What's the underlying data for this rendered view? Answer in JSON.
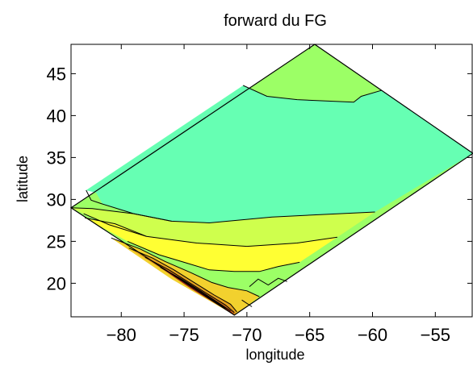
{
  "chart_data": {
    "type": "contour",
    "title": "forward du FG",
    "xlabel": "longitude",
    "ylabel": "latitude",
    "xlim": [
      -84,
      -52
    ],
    "ylim": [
      16,
      48.5
    ],
    "xticks": [
      -80,
      -75,
      -70,
      -65,
      -60,
      -55
    ],
    "yticks": [
      20,
      25,
      30,
      35,
      40,
      45
    ],
    "grid": false,
    "domain_outline": [
      [
        -84,
        29
      ],
      [
        -64.6,
        48.5
      ],
      [
        -52,
        35.5
      ],
      [
        -71,
        16.2
      ]
    ],
    "filled_regions": [
      {
        "name": "level-1",
        "color": "#9cff66",
        "polygon": [
          [
            -84,
            29
          ],
          [
            -64.6,
            48.5
          ],
          [
            -52,
            35.5
          ],
          [
            -71,
            16.2
          ]
        ]
      },
      {
        "name": "level-2",
        "color": "#66ffb3",
        "polygon": [
          [
            -82.8,
            31.1
          ],
          [
            -70.3,
            43.6
          ],
          [
            -68.4,
            42.3
          ],
          [
            -66,
            41.9
          ],
          [
            -61.5,
            41.6
          ],
          [
            -60.9,
            42.3
          ],
          [
            -59.3,
            43
          ],
          [
            -52,
            35.5
          ],
          [
            -59.8,
            28.5
          ],
          [
            -64,
            28.2
          ],
          [
            -68,
            27.9
          ],
          [
            -73,
            27.2
          ],
          [
            -76,
            27.4
          ],
          [
            -79,
            28.3
          ],
          [
            -81.5,
            29.5
          ],
          [
            -82,
            30.8
          ]
        ]
      },
      {
        "name": "level-3",
        "color": "#cfff4d",
        "polygon": [
          [
            -84,
            29
          ],
          [
            -82.3,
            28.9
          ],
          [
            -79,
            28.3
          ],
          [
            -76,
            27.4
          ],
          [
            -73,
            27.2
          ],
          [
            -68,
            27.9
          ],
          [
            -64,
            28.2
          ],
          [
            -59.8,
            28.5
          ],
          [
            -62.8,
            25.5
          ],
          [
            -66,
            24.8
          ],
          [
            -70,
            24.4
          ],
          [
            -74,
            24.8
          ],
          [
            -78,
            25.6
          ],
          [
            -81,
            27
          ],
          [
            -83,
            28.3
          ]
        ]
      },
      {
        "name": "level-4",
        "color": "#ffff33",
        "polygon": [
          [
            -82.9,
            27.8
          ],
          [
            -80.5,
            27.1
          ],
          [
            -78,
            25.6
          ],
          [
            -74,
            24.8
          ],
          [
            -70,
            24.4
          ],
          [
            -66,
            24.8
          ],
          [
            -62.8,
            25.5
          ],
          [
            -65.8,
            22.5
          ],
          [
            -67.5,
            22
          ],
          [
            -69,
            21.4
          ],
          [
            -71,
            21.4
          ],
          [
            -73,
            21.6
          ],
          [
            -75,
            22.5
          ],
          [
            -77,
            23.4
          ],
          [
            -79.5,
            25
          ]
        ]
      },
      {
        "name": "level-5",
        "color": "#f2d12e",
        "polygon": [
          [
            -80.8,
            25.4
          ],
          [
            -78.5,
            24.1
          ],
          [
            -76.5,
            22.6
          ],
          [
            -74.5,
            21.3
          ],
          [
            -72.8,
            20.1
          ],
          [
            -71.5,
            19.5
          ],
          [
            -70,
            19.1
          ],
          [
            -69,
            18.4
          ],
          [
            -70.5,
            16.7
          ],
          [
            -71,
            16.2
          ],
          [
            -76,
            20.5
          ]
        ]
      },
      {
        "name": "level-6",
        "color": "#e3a01f",
        "polygon": [
          [
            -79.4,
            24.2
          ],
          [
            -77.5,
            23
          ],
          [
            -75.8,
            21.6
          ],
          [
            -74.2,
            20.1
          ],
          [
            -72.6,
            18.6
          ],
          [
            -71.3,
            17.5
          ],
          [
            -70.8,
            16.6
          ],
          [
            -71,
            16.2
          ],
          [
            -75.5,
            20.5
          ]
        ]
      },
      {
        "name": "level-7",
        "color": "#c76a1a",
        "polygon": [
          [
            -78.1,
            23.1
          ],
          [
            -76.2,
            21.6
          ],
          [
            -74.6,
            20.1
          ],
          [
            -73.1,
            18.7
          ],
          [
            -71.7,
            17.4
          ],
          [
            -71,
            16.5
          ],
          [
            -71,
            16.2
          ],
          [
            -75,
            19.9
          ]
        ]
      },
      {
        "name": "level-8",
        "color": "#a02b14",
        "polygon": [
          [
            -76.9,
            21.9
          ],
          [
            -75.2,
            20.5
          ],
          [
            -73.6,
            19
          ],
          [
            -72.3,
            17.7
          ],
          [
            -71.3,
            16.7
          ],
          [
            -71,
            16.2
          ],
          [
            -74.5,
            19.4
          ]
        ]
      },
      {
        "name": "level-9",
        "color": "#7a0d0d",
        "polygon": [
          [
            -75.8,
            20.9
          ],
          [
            -74.3,
            19.6
          ],
          [
            -72.9,
            18.2
          ],
          [
            -71.7,
            17
          ],
          [
            -71,
            16.2
          ],
          [
            -73.8,
            19.1
          ]
        ]
      }
    ],
    "contour_lines": [
      [
        [
          -70.3,
          43.6
        ],
        [
          -68.4,
          42.3
        ],
        [
          -66,
          41.9
        ],
        [
          -61.5,
          41.6
        ],
        [
          -60.9,
          42.3
        ],
        [
          -59.3,
          43
        ]
      ],
      [
        [
          -82.8,
          31.1
        ],
        [
          -82.4,
          29.9
        ],
        [
          -81.6,
          29.5
        ],
        [
          -79,
          28.3
        ],
        [
          -76,
          27.4
        ],
        [
          -73,
          27.2
        ],
        [
          -68,
          27.9
        ],
        [
          -64,
          28.2
        ],
        [
          -59.8,
          28.5
        ]
      ],
      [
        [
          -84,
          29
        ],
        [
          -82.3,
          28.9
        ],
        [
          -79,
          28.3
        ],
        [
          -76,
          27.4
        ]
      ],
      [
        [
          -83,
          28.3
        ],
        [
          -81,
          27
        ],
        [
          -78,
          25.6
        ],
        [
          -74,
          24.8
        ],
        [
          -70,
          24.4
        ],
        [
          -66,
          24.8
        ],
        [
          -62.8,
          25.5
        ]
      ],
      [
        [
          -82.9,
          27.8
        ],
        [
          -80.5,
          27.1
        ],
        [
          -78,
          25.6
        ]
      ],
      [
        [
          -79.5,
          25
        ],
        [
          -77,
          23.4
        ],
        [
          -75,
          22.5
        ],
        [
          -73,
          21.6
        ],
        [
          -71,
          21.4
        ],
        [
          -69,
          21.4
        ],
        [
          -67.5,
          22
        ],
        [
          -65.8,
          22.5
        ]
      ],
      [
        [
          -80.8,
          25.4
        ],
        [
          -78.5,
          24.1
        ],
        [
          -76.5,
          22.6
        ],
        [
          -74.5,
          21.3
        ],
        [
          -72.8,
          20.1
        ],
        [
          -71.5,
          19.5
        ],
        [
          -70,
          19.1
        ],
        [
          -69,
          18.4
        ]
      ],
      [
        [
          -69.8,
          19.6
        ],
        [
          -69.1,
          20.5
        ],
        [
          -68.3,
          19.8
        ],
        [
          -67.5,
          20.6
        ],
        [
          -66.8,
          20.2
        ]
      ],
      [
        [
          -70.4,
          18
        ],
        [
          -69.6,
          17.2
        ]
      ],
      [
        [
          -79.4,
          24.2
        ],
        [
          -77.5,
          23
        ],
        [
          -75.8,
          21.6
        ],
        [
          -74.2,
          20.1
        ],
        [
          -72.6,
          18.6
        ],
        [
          -71.3,
          17.5
        ],
        [
          -70.8,
          16.6
        ]
      ],
      [
        [
          -78.1,
          23.1
        ],
        [
          -76.2,
          21.6
        ],
        [
          -74.6,
          20.1
        ],
        [
          -73.1,
          18.7
        ],
        [
          -71.7,
          17.4
        ],
        [
          -71,
          16.5
        ]
      ],
      [
        [
          -76.9,
          21.9
        ],
        [
          -75.2,
          20.5
        ],
        [
          -73.6,
          19
        ],
        [
          -72.3,
          17.7
        ],
        [
          -71.3,
          16.7
        ]
      ],
      [
        [
          -75.8,
          20.9
        ],
        [
          -74.3,
          19.6
        ],
        [
          -72.9,
          18.2
        ],
        [
          -71.7,
          17
        ]
      ]
    ]
  }
}
